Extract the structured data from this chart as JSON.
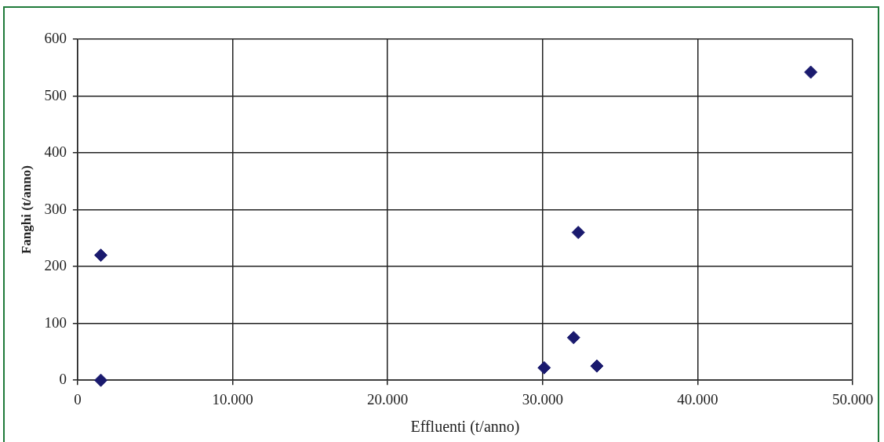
{
  "chart_data": {
    "type": "scatter",
    "xlabel": "Effluenti (t/anno)",
    "ylabel": "Fanghi (t/anno)",
    "x": [
      1500,
      1500,
      30100,
      32000,
      32300,
      33500,
      47300
    ],
    "values": [
      220,
      0,
      22,
      75,
      260,
      25,
      542
    ],
    "color": "#1a1a6e",
    "marker": "diamond",
    "grid": true,
    "legend": false,
    "xlim": [
      0,
      50000
    ],
    "xticks": [
      0,
      {
        "value": 10000,
        "label": "10.000"
      },
      {
        "value": 20000,
        "label": "20.000"
      },
      {
        "value": 30000,
        "label": "30.000"
      },
      {
        "value": 40000,
        "label": "40.000"
      },
      {
        "value": 50000,
        "label": "50.000"
      }
    ],
    "ylim": [
      0,
      600
    ],
    "yticks": [
      0,
      100,
      200,
      300,
      400,
      500,
      600
    ]
  }
}
